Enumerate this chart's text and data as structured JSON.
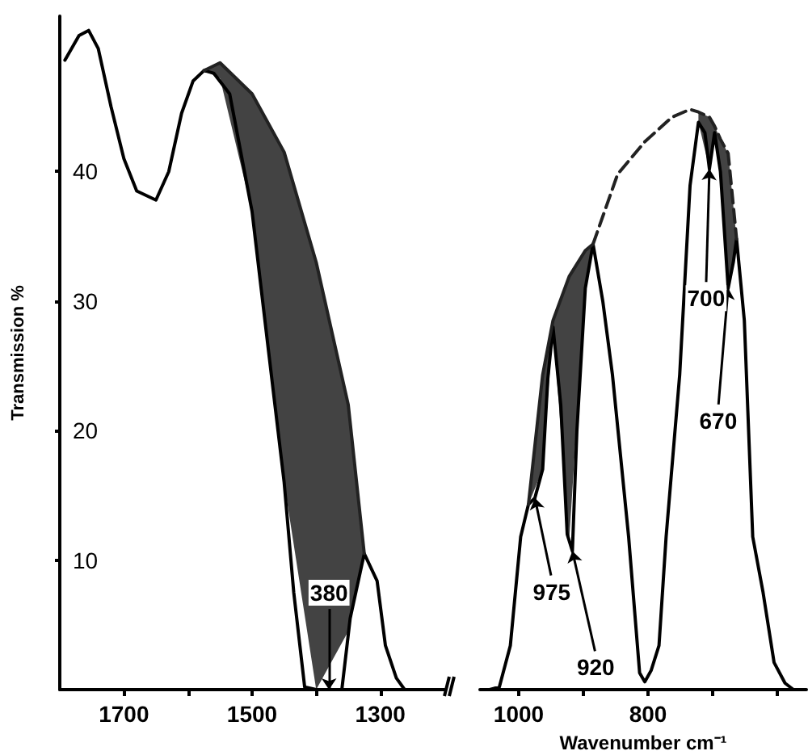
{
  "chart_data": [
    {
      "type": "line",
      "ylabel": "Transmission %",
      "xlim": [
        1800,
        1200
      ],
      "xticks": [
        1700,
        {
          "value": 1600,
          "label": null
        },
        1500,
        {
          "value": 1400,
          "label": null
        },
        1300
      ],
      "ylim": [
        0,
        52
      ],
      "yticks": [
        10,
        20,
        30,
        40
      ],
      "grid": false,
      "marker": "none",
      "annotations": [
        {
          "text": "380",
          "x": 1380,
          "y": 0
        }
      ],
      "series": [
        {
          "color": "#000000",
          "line_style": "solid",
          "x": [
            1792,
            1770,
            1755,
            1740,
            1720,
            1700,
            1680,
            1650,
            1630,
            1610,
            1592,
            1575,
            1560,
            1535,
            1500,
            1475,
            1450,
            1435,
            1418,
            1400,
            1380,
            1360,
            1347,
            1325,
            1305,
            1292,
            1275,
            1262
          ],
          "values": [
            48.6,
            50.5,
            50.9,
            49.5,
            45,
            41,
            38.5,
            37.8,
            40,
            44.5,
            47,
            47.8,
            47.6,
            46,
            36.9,
            26.4,
            16,
            7.5,
            0.2,
            0,
            0,
            0,
            5.5,
            10.5,
            8.4,
            3.4,
            0.9,
            0
          ]
        },
        {
          "color": "#222222",
          "line_style": "solid",
          "x": [
            1575,
            1550,
            1500,
            1450,
            1400,
            1350,
            1325
          ],
          "values": [
            47.8,
            48.4,
            46,
            41.5,
            33,
            22,
            10.5
          ],
          "lower": [
            47.8,
            47.2,
            36.9,
            16,
            0,
            4.5,
            10.5
          ],
          "upper": [
            47.8,
            48.4,
            46,
            41.5,
            33,
            22,
            10.5
          ]
        }
      ]
    },
    {
      "type": "line",
      "xlabel": "Wavenumber cm⁻¹",
      "xlim": [
        1060,
        555
      ],
      "xticks": [
        1000,
        {
          "value": 900,
          "label": null
        },
        800,
        {
          "value": 700,
          "label": null
        },
        {
          "value": 600,
          "label": null
        }
      ],
      "yticks": [
        10,
        20,
        30,
        40
      ],
      "tick_labels": "x",
      "grid": false,
      "marker": "none",
      "annotations": [
        {
          "text": "975",
          "x": 975,
          "y": 14.8
        },
        {
          "text": "920",
          "x": 917,
          "y": 10.7
        },
        {
          "text": "700",
          "x": 705,
          "y": 40.2
        },
        {
          "text": "670",
          "x": 676,
          "y": 31
        }
      ],
      "series": [
        {
          "color": "#000000",
          "line_style": "solid",
          "x": [
            1045,
            1030,
            1013,
            997,
            985,
            975,
            963,
            955,
            947,
            935,
            925,
            917,
            910,
            897,
            885,
            870,
            855,
            830,
            813,
            805,
            795,
            783,
            772,
            751,
            735,
            722,
            712,
            705,
            697,
            688,
            676,
            668,
            663,
            651,
            638,
            622,
            605,
            588,
            575
          ],
          "values": [
            0,
            0.2,
            3.4,
            11.8,
            14.3,
            14.8,
            17,
            24,
            28,
            22,
            12,
            10.7,
            20,
            31,
            34.4,
            30,
            24.3,
            11.8,
            1.3,
            0.6,
            1.5,
            3.4,
            11.8,
            24.3,
            38.9,
            43.8,
            43,
            40.2,
            43,
            40,
            31,
            33,
            34.8,
            28.5,
            11.8,
            7.5,
            2.1,
            0.5,
            0
          ]
        },
        {
          "color": "#222222",
          "line_style": "solid",
          "x": [
            985,
            963,
            947,
            922,
            897,
            885
          ],
          "values": [
            14.3,
            24.3,
            28.5,
            31.9,
            33.9,
            34.4
          ],
          "lower": [
            14.3,
            17,
            28,
            11.5,
            31,
            34.4
          ],
          "upper": [
            14.3,
            24.3,
            28.5,
            31.9,
            33.9,
            34.4
          ]
        },
        {
          "color": "#222222",
          "line_style": "dashed",
          "x": [
            885,
            847,
            805,
            763,
            735,
            722,
            705,
            697,
            688,
            676,
            663
          ],
          "values": [
            34.4,
            39.8,
            42.3,
            44.2,
            44.8,
            44.6,
            44.2,
            43.5,
            42.5,
            41.4,
            34.8
          ],
          "lower": [
            null,
            null,
            null,
            null,
            null,
            43.8,
            40.2,
            43,
            40,
            31,
            34.8
          ],
          "upper": [
            null,
            null,
            null,
            null,
            null,
            44.6,
            44.2,
            43.5,
            42.5,
            41.4,
            34.8
          ]
        }
      ]
    }
  ]
}
